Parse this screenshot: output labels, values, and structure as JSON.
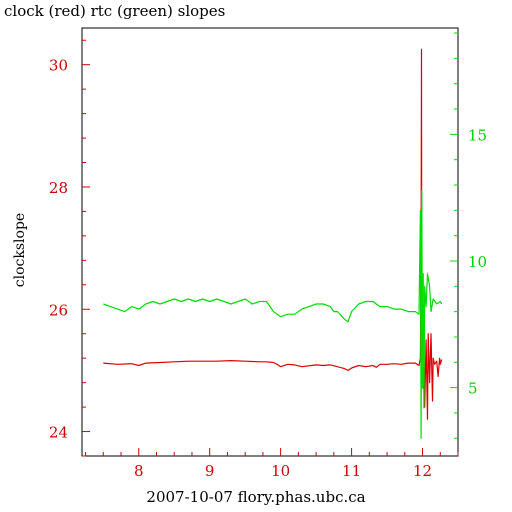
{
  "chart_data": {
    "type": "line",
    "title": "clock (red) rtc (green) slopes",
    "xlabel": "2007-10-07 flory.phas.ubc.ca",
    "ylabel": "clockslope",
    "xlim": [
      7.2,
      12.5
    ],
    "xticks": [
      8,
      9,
      10,
      11,
      12
    ],
    "ylim_left": [
      23.6,
      30.6
    ],
    "yticks_left": [
      24,
      26,
      28,
      30
    ],
    "ylim_right": [
      2.3,
      19.2
    ],
    "yticks_right": [
      5,
      10,
      15
    ],
    "grid": false,
    "series": [
      {
        "name": "clock",
        "color": "#dd0000",
        "axis": "left",
        "x": [
          7.5,
          7.7,
          7.9,
          8.0,
          8.1,
          8.3,
          8.5,
          8.7,
          8.9,
          9.1,
          9.3,
          9.5,
          9.7,
          9.8,
          9.9,
          9.95,
          10.0,
          10.1,
          10.2,
          10.3,
          10.5,
          10.6,
          10.7,
          10.8,
          10.9,
          10.95,
          11.0,
          11.1,
          11.2,
          11.3,
          11.35,
          11.4,
          11.5,
          11.6,
          11.7,
          11.8,
          11.9,
          11.95,
          11.97,
          11.98,
          11.985,
          11.99,
          12.0,
          12.01,
          12.02,
          12.03,
          12.05,
          12.07,
          12.08,
          12.1,
          12.12,
          12.14,
          12.15,
          12.17,
          12.2,
          12.22,
          12.24,
          12.25,
          12.27
        ],
        "y": [
          25.12,
          25.1,
          25.11,
          25.08,
          25.12,
          25.13,
          25.14,
          25.15,
          25.15,
          25.15,
          25.16,
          25.15,
          25.14,
          25.14,
          25.13,
          25.1,
          25.06,
          25.1,
          25.09,
          25.06,
          25.09,
          25.08,
          25.09,
          25.06,
          25.03,
          25.0,
          25.04,
          25.08,
          25.06,
          25.08,
          25.05,
          25.1,
          25.1,
          25.11,
          25.1,
          25.12,
          25.12,
          25.08,
          25.2,
          27.0,
          30.25,
          24.8,
          25.3,
          24.7,
          25.6,
          24.4,
          25.5,
          24.2,
          25.6,
          24.8,
          25.6,
          24.5,
          25.2,
          25.1,
          25.15,
          24.9,
          25.2,
          25.1,
          25.18
        ]
      },
      {
        "name": "rtc",
        "color": "#00dd00",
        "axis": "right",
        "x": [
          7.5,
          7.6,
          7.7,
          7.8,
          7.9,
          8.0,
          8.1,
          8.2,
          8.3,
          8.4,
          8.5,
          8.6,
          8.7,
          8.8,
          8.9,
          9.0,
          9.1,
          9.2,
          9.3,
          9.4,
          9.5,
          9.6,
          9.7,
          9.8,
          9.9,
          10.0,
          10.1,
          10.2,
          10.3,
          10.4,
          10.5,
          10.6,
          10.7,
          10.75,
          10.8,
          10.9,
          10.95,
          11.0,
          11.1,
          11.2,
          11.3,
          11.4,
          11.5,
          11.6,
          11.7,
          11.8,
          11.9,
          11.95,
          11.97,
          11.98,
          11.99,
          12.0,
          12.01,
          12.02,
          12.03,
          12.05,
          12.07,
          12.1,
          12.12,
          12.15,
          12.2,
          12.25,
          12.27
        ],
        "y": [
          8.3,
          8.2,
          8.1,
          8.0,
          8.2,
          8.1,
          8.3,
          8.4,
          8.3,
          8.4,
          8.5,
          8.4,
          8.5,
          8.4,
          8.5,
          8.4,
          8.5,
          8.4,
          8.3,
          8.4,
          8.5,
          8.3,
          8.4,
          8.4,
          8.0,
          7.8,
          7.9,
          7.9,
          8.1,
          8.2,
          8.3,
          8.3,
          8.2,
          8.0,
          8.0,
          7.7,
          7.6,
          8.0,
          8.3,
          8.4,
          8.4,
          8.2,
          8.2,
          8.1,
          8.1,
          8.0,
          8.0,
          7.9,
          12.0,
          3.0,
          12.8,
          5.0,
          9.5,
          4.2,
          9.0,
          8.2,
          9.5,
          9.0,
          8.0,
          8.5,
          8.3,
          8.4,
          8.3
        ]
      }
    ]
  }
}
